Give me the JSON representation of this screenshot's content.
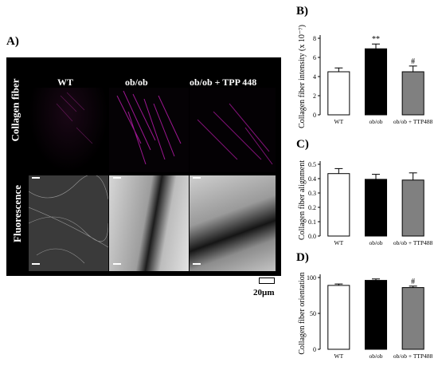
{
  "panels": {
    "a": {
      "label": "A)",
      "columns": [
        "WT",
        "ob/ob",
        "ob/ob + TPP 448"
      ],
      "rows": [
        "Collagen fiber",
        "Fluorescence"
      ],
      "scale": "20µm"
    },
    "b": {
      "label": "B)"
    },
    "c": {
      "label": "C)"
    },
    "d": {
      "label": "D)"
    }
  },
  "chart_data": [
    {
      "type": "bar",
      "ylabel": "Collagen fiber intensity (x 10⁻⁷)",
      "categories": [
        "WT",
        "ob/ob",
        "ob/ob + TTP488"
      ],
      "values": [
        4.5,
        6.9,
        4.5
      ],
      "errors": [
        0.4,
        0.5,
        0.6
      ],
      "annotations": [
        "",
        "**",
        "#"
      ],
      "colors": [
        "#ffffff",
        "#000000",
        "#808080"
      ],
      "ylim": [
        0,
        8
      ],
      "yticks": [
        0,
        2,
        4,
        6,
        8
      ]
    },
    {
      "type": "bar",
      "ylabel": "Collagen fiber alignment",
      "categories": [
        "WT",
        "ob/ob",
        "ob/ob + TTP488"
      ],
      "values": [
        0.435,
        0.395,
        0.39
      ],
      "errors": [
        0.035,
        0.035,
        0.05
      ],
      "annotations": [
        "",
        "",
        ""
      ],
      "colors": [
        "#ffffff",
        "#000000",
        "#808080"
      ],
      "ylim": [
        0,
        0.5
      ],
      "yticks": [
        0.0,
        0.1,
        0.2,
        0.3,
        0.4,
        0.5
      ]
    },
    {
      "type": "bar",
      "ylabel": "Collagen fiber orientation",
      "categories": [
        "WT",
        "ob/ob",
        "ob/ob + TTP488"
      ],
      "values": [
        89,
        96,
        86
      ],
      "errors": [
        2,
        2,
        2
      ],
      "annotations": [
        "",
        "",
        "#"
      ],
      "colors": [
        "#ffffff",
        "#000000",
        "#808080"
      ],
      "ylim": [
        0,
        100
      ],
      "yticks": [
        0,
        50,
        100
      ]
    }
  ]
}
